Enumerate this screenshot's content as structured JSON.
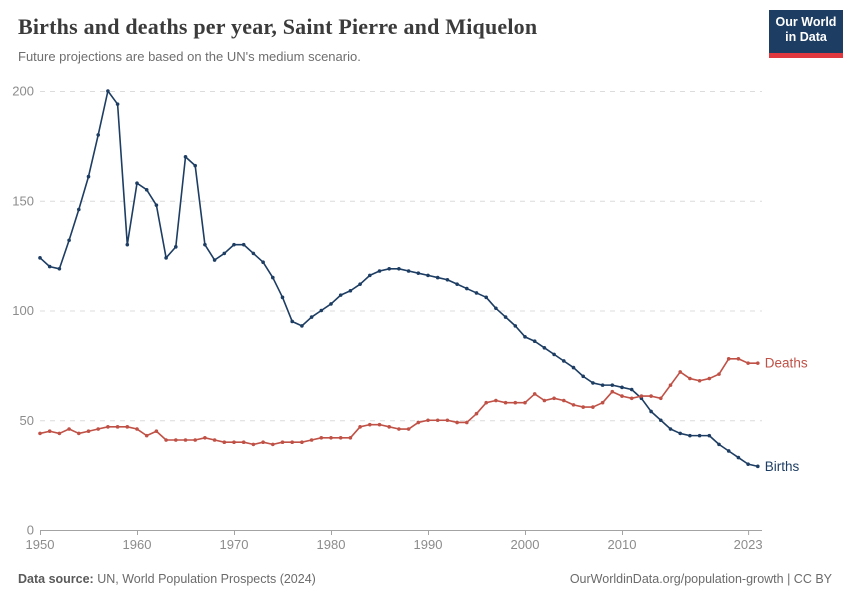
{
  "header": {
    "title": "Births and deaths per year, Saint Pierre and Miquelon",
    "subtitle": "Future projections are based on the UN's medium scenario.",
    "logo": {
      "line1": "Our World",
      "line2": "in Data"
    }
  },
  "chart_data": {
    "type": "line",
    "title": "Births and deaths per year, Saint Pierre and Miquelon",
    "xlabel": "",
    "ylabel": "",
    "ylim": [
      0,
      200
    ],
    "yticks": [
      0,
      50,
      100,
      150,
      200
    ],
    "xticks": [
      1950,
      1960,
      1970,
      1980,
      1990,
      2000,
      2010,
      2023
    ],
    "grid": "dashed-horizontal",
    "legend_position": "line-end-labels",
    "x": [
      1950,
      1951,
      1952,
      1953,
      1954,
      1955,
      1956,
      1957,
      1958,
      1959,
      1960,
      1961,
      1962,
      1963,
      1964,
      1965,
      1966,
      1967,
      1968,
      1969,
      1970,
      1971,
      1972,
      1973,
      1974,
      1975,
      1976,
      1977,
      1978,
      1979,
      1980,
      1981,
      1982,
      1983,
      1984,
      1985,
      1986,
      1987,
      1988,
      1989,
      1990,
      1991,
      1992,
      1993,
      1994,
      1995,
      1996,
      1997,
      1998,
      1999,
      2000,
      2001,
      2002,
      2003,
      2004,
      2005,
      2006,
      2007,
      2008,
      2009,
      2010,
      2011,
      2012,
      2013,
      2014,
      2015,
      2016,
      2017,
      2018,
      2019,
      2020,
      2021,
      2022,
      2023,
      2024
    ],
    "series": [
      {
        "name": "Births",
        "color": "#1d3d63",
        "values": [
          124,
          120,
          119,
          132,
          146,
          161,
          180,
          200,
          194,
          130,
          158,
          155,
          148,
          124,
          129,
          170,
          166,
          130,
          123,
          126,
          130,
          130,
          126,
          122,
          115,
          106,
          95,
          93,
          97,
          100,
          103,
          107,
          109,
          112,
          116,
          118,
          119,
          119,
          118,
          117,
          116,
          115,
          114,
          112,
          110,
          108,
          106,
          101,
          97,
          93,
          88,
          86,
          83,
          80,
          77,
          74,
          70,
          67,
          66,
          66,
          65,
          64,
          60,
          54,
          50,
          46,
          44,
          43,
          43,
          43,
          39,
          36,
          33,
          30,
          29
        ]
      },
      {
        "name": "Deaths",
        "color": "#c05146",
        "values": [
          44,
          45,
          44,
          46,
          44,
          45,
          46,
          47,
          47,
          47,
          46,
          43,
          45,
          41,
          41,
          41,
          41,
          42,
          41,
          40,
          40,
          40,
          39,
          40,
          39,
          40,
          40,
          40,
          41,
          42,
          42,
          42,
          42,
          47,
          48,
          48,
          47,
          46,
          46,
          49,
          50,
          50,
          50,
          49,
          49,
          53,
          58,
          59,
          58,
          58,
          58,
          62,
          59,
          60,
          59,
          57,
          56,
          56,
          58,
          63,
          61,
          60,
          61,
          61,
          60,
          66,
          72,
          69,
          68,
          69,
          71,
          78,
          78,
          76,
          76
        ]
      }
    ]
  },
  "axis_style": {
    "grid_color": "#dcdcdc",
    "axis_color": "#a3a3a3",
    "tick_text_color": "#8c8c8c"
  },
  "footer": {
    "source_label": "Data source:",
    "source_value": " UN, World Population Prospects (2024)",
    "credit": "OurWorldinData.org/population-growth | CC BY"
  }
}
